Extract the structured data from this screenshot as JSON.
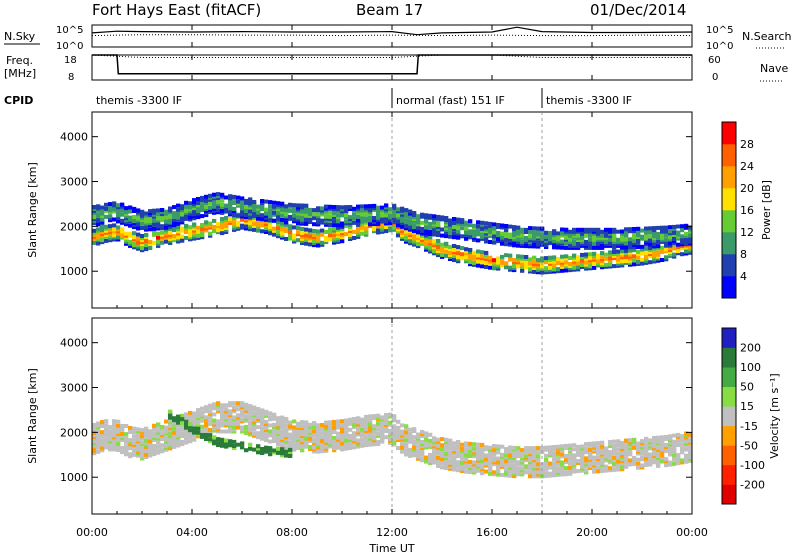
{
  "header": {
    "station": "Fort Hays East (fitACF)",
    "beam": "Beam 17",
    "date": "01/Dec/2014"
  },
  "panel_labels": {
    "nsky": "N.Sky",
    "freq_line1": "Freq.",
    "freq_line2": "[MHz]",
    "cpid": "CPID",
    "nsearch": "N.Search",
    "nave": "Nave"
  },
  "noise_axis": {
    "left_top": "10^5",
    "left_bottom": "10^0",
    "right_top": "10^5",
    "right_bottom": "10^0"
  },
  "freq_axis": {
    "left_top": "18",
    "left_bottom": "8",
    "right_top": "60",
    "right_bottom": "0"
  },
  "cpid_segments": [
    {
      "label": "themis -3300 IF",
      "start_h": 0,
      "end_h": 12
    },
    {
      "label": "normal (fast) 151 IF",
      "start_h": 12,
      "end_h": 18
    },
    {
      "label": "themis -3300 IF",
      "start_h": 18,
      "end_h": 24
    }
  ],
  "x_axis": {
    "label": "Time UT",
    "ticks": [
      "00:00",
      "04:00",
      "08:00",
      "12:00",
      "16:00",
      "20:00",
      "00:00"
    ],
    "range_h": [
      0,
      24
    ]
  },
  "chart_data": [
    {
      "type": "heatmap",
      "title": "",
      "ylabel": "Slant Range [km]",
      "xlabel": "",
      "ylim": [
        180,
        4550
      ],
      "yticks": [
        "1000",
        "2000",
        "3000",
        "4000"
      ],
      "colorbar_label": "Power [dB]",
      "colorbar_ticks": [
        "4",
        "8",
        "12",
        "16",
        "20",
        "24",
        "28"
      ],
      "colorbar_range": [
        0,
        30
      ],
      "colors": [
        "#0000ff",
        "#2040b0",
        "#3a9a6a",
        "#66cc33",
        "#ffe000",
        "#ffa000",
        "#ff6000",
        "#ff0000"
      ],
      "bands": [
        {
          "x": [
            0,
            0.5,
            1,
            1.5,
            2,
            3,
            4,
            5,
            6,
            7,
            8,
            9,
            10,
            11,
            12,
            12.5,
            13,
            14,
            15,
            16,
            17,
            18,
            19,
            20,
            21,
            22,
            23,
            23.5,
            24
          ],
          "center": [
            1700,
            1800,
            1850,
            1700,
            1600,
            1750,
            1850,
            1950,
            2100,
            2000,
            1800,
            1700,
            1800,
            1950,
            2050,
            1800,
            1700,
            1450,
            1300,
            1200,
            1150,
            1100,
            1150,
            1200,
            1250,
            1300,
            1400,
            1500,
            1550
          ],
          "width": 350,
          "power": 24
        },
        {
          "x": [
            0,
            1,
            2,
            3,
            4,
            5,
            6,
            8,
            10,
            12,
            13,
            15,
            17,
            19,
            21,
            23,
            24
          ],
          "center": [
            2200,
            2300,
            2100,
            2150,
            2350,
            2500,
            2400,
            2250,
            2200,
            2250,
            2050,
            1900,
            1750,
            1700,
            1700,
            1750,
            1800
          ],
          "width": 450,
          "power": 12
        }
      ]
    },
    {
      "type": "heatmap",
      "title": "",
      "ylabel": "Slant Range [km]",
      "xlabel": "",
      "ylim": [
        180,
        4550
      ],
      "yticks": [
        "1000",
        "2000",
        "3000",
        "4000"
      ],
      "colorbar_label": "Velocity [m s⁻¹]",
      "colorbar_ticks": [
        "200",
        "100",
        "50",
        "15",
        "-15",
        "-50",
        "-100",
        "-200"
      ],
      "colorbar_range": [
        -250,
        250
      ],
      "colors": [
        "#2020c0",
        "#2a7a3a",
        "#44aa44",
        "#88dd44",
        "#c0c0c0",
        "#ffa000",
        "#ff6000",
        "#ff2000",
        "#e00000"
      ],
      "bands": [
        {
          "x": [
            0,
            0.5,
            1,
            1.5,
            2,
            3,
            4,
            5,
            6,
            7,
            8,
            9,
            10,
            11,
            12,
            12.5,
            13,
            14,
            15,
            16,
            17,
            18,
            19,
            20,
            21,
            22,
            23,
            23.5,
            24
          ],
          "center": [
            1800,
            1900,
            1900,
            1750,
            1700,
            1900,
            2100,
            2300,
            2300,
            2100,
            1900,
            1850,
            1900,
            2000,
            2050,
            1800,
            1700,
            1500,
            1400,
            1350,
            1300,
            1300,
            1350,
            1400,
            1450,
            1500,
            1550,
            1600,
            1650
          ],
          "width": 650,
          "velocity": 0
        },
        {
          "x": [
            3,
            4,
            5,
            6,
            7,
            8
          ],
          "center": [
            2400,
            2050,
            1750,
            1650,
            1550,
            1500
          ],
          "width": 150,
          "velocity": 60
        }
      ]
    },
    {
      "type": "line",
      "title": "",
      "xlabel": "",
      "ylabel": "",
      "series": [
        {
          "x": [
            0,
            1,
            2,
            4,
            6,
            8,
            10,
            12,
            13,
            14,
            16,
            17,
            18,
            20,
            22,
            24
          ],
          "values": [
            3.2,
            3.6,
            3.5,
            3.4,
            3.5,
            3.4,
            3.4,
            3.5,
            2.8,
            3.2,
            3.4,
            4.5,
            3.5,
            3.3,
            3.3,
            3.4
          ]
        },
        {
          "x": [
            0,
            2,
            4,
            6,
            8,
            10,
            12,
            14,
            16,
            18,
            20,
            22,
            24
          ],
          "values": [
            2.6,
            2.8,
            2.8,
            2.7,
            2.7,
            2.6,
            2.7,
            2.6,
            2.7,
            2.6,
            2.6,
            2.7,
            2.6
          ]
        }
      ]
    },
    {
      "type": "line",
      "title": "",
      "xlabel": "",
      "ylabel": "",
      "series": [
        {
          "x": [
            0,
            1,
            1.05,
            13,
            13.05,
            24
          ],
          "values": [
            18,
            18,
            10.5,
            10.5,
            18,
            18
          ]
        },
        {
          "x": [
            0,
            2,
            4,
            6,
            8,
            10,
            12,
            14,
            16,
            18,
            20,
            22,
            24
          ],
          "values": [
            18,
            17,
            17,
            17,
            17,
            17,
            17,
            18,
            18,
            17,
            17,
            17,
            17
          ]
        }
      ]
    }
  ]
}
